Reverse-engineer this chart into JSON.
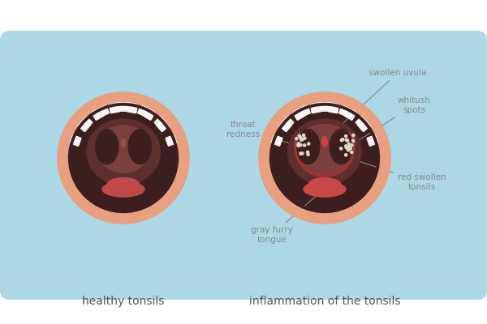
{
  "bg_rect_color": "#add8e6",
  "outer_bg": "#ffffff",
  "label_healthy": "healthy tonsils",
  "label_inflamed": "inflammation of the tonsils",
  "label_color": "#555555",
  "annotations": {
    "swollen_uvula": "swollen uvula",
    "whitush_spots": "whitush\nspots",
    "throat_redness": "throat\nredness",
    "gray_furry_tongue": "gray furry\ntongue",
    "red_swollen_tonsils": "red swollen\ntonsils"
  },
  "annotation_color": "#888888",
  "skin_lip": "#e8a080",
  "throat_darkest": "#3d1e1e",
  "throat_dark": "#5c2e2e",
  "throat_mid": "#7a4040",
  "throat_lighter": "#8b5050",
  "tonsil_arch_normal": "#6b3535",
  "tonsil_arch_inflamed": "#7a3535",
  "tongue_color": "#c04848",
  "tongue_inflamed": "#c84848",
  "uvula_normal": "#8b5555",
  "uvula_inflamed": "#cc4444",
  "tonsil_inflamed_color": "#8b3535",
  "tooth_color": "#f5f5f5",
  "spot_color": "#ddd8c8",
  "inflamed_bg_color": "#aa3030"
}
